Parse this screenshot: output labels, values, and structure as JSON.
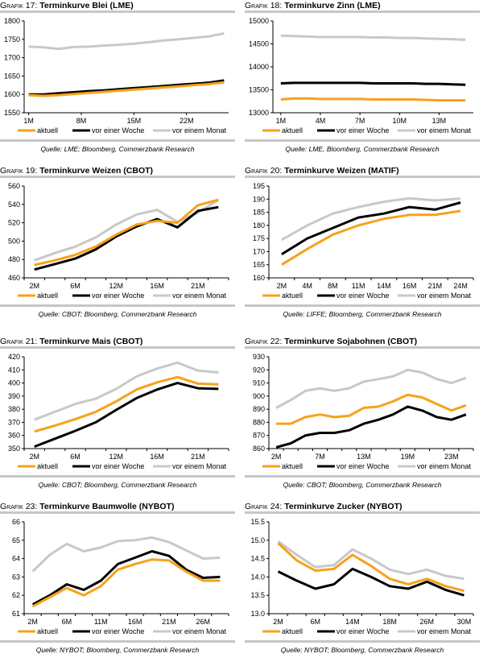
{
  "colors": {
    "aktuell": "#F7A11A",
    "woche": "#000000",
    "monat": "#C8C8C8",
    "rule": "#C6C6C6"
  },
  "chart_data": [
    {
      "type": "line",
      "label": "Grafik 17:",
      "title": "Terminkurve Blei (LME)",
      "source": "Quelle: LME; Bloomberg, Commerzbank Research",
      "xaxis": "numeric",
      "x": [
        1,
        3,
        5,
        7,
        9,
        11,
        13,
        15,
        17,
        19,
        21,
        23,
        25,
        27
      ],
      "xticks": [
        {
          "x": 1,
          "label": "1M"
        },
        {
          "x": 8,
          "label": "8M"
        },
        {
          "x": 15,
          "label": "15M"
        },
        {
          "x": 22,
          "label": "22M"
        }
      ],
      "ylim": [
        1550,
        1800
      ],
      "yticks": [
        "1550",
        "1600",
        "1650",
        "1700",
        "1750",
        "1800"
      ],
      "series": [
        {
          "name": "aktuell",
          "color": "#F7A11A",
          "values": [
            1598,
            1596,
            1598,
            1601,
            1604,
            1607,
            1610,
            1613,
            1616,
            1619,
            1622,
            1625,
            1628,
            1633
          ]
        },
        {
          "name": "vor einer Woche",
          "color": "#000000",
          "values": [
            1600,
            1600,
            1603,
            1606,
            1609,
            1611,
            1614,
            1617,
            1620,
            1623,
            1626,
            1629,
            1632,
            1638
          ]
        },
        {
          "name": "vor einem Monat",
          "color": "#C8C8C8",
          "values": [
            1730,
            1728,
            1724,
            1729,
            1730,
            1733,
            1735,
            1738,
            1742,
            1747,
            1750,
            1754,
            1758,
            1766
          ]
        }
      ]
    },
    {
      "type": "line",
      "label": "Grafik 18:",
      "title": "Terminkurve Zinn (LME)",
      "source": "Quelle: LME, Bloomberg, Commerzbank Research",
      "xaxis": "numeric",
      "x": [
        1,
        2,
        3,
        4,
        5,
        6,
        7,
        8,
        9,
        10,
        11,
        12,
        13,
        14,
        15
      ],
      "xticks": [
        {
          "x": 1,
          "label": "1M"
        },
        {
          "x": 4,
          "label": "4M"
        },
        {
          "x": 7,
          "label": "7M"
        },
        {
          "x": 10,
          "label": "10M"
        },
        {
          "x": 13,
          "label": "13M"
        }
      ],
      "ylim": [
        13000,
        15000
      ],
      "yticks": [
        "13000",
        "13500",
        "14000",
        "14500",
        "15000"
      ],
      "series": [
        {
          "name": "aktuell",
          "color": "#F7A11A",
          "values": [
            13290,
            13310,
            13310,
            13300,
            13300,
            13300,
            13300,
            13290,
            13290,
            13290,
            13290,
            13280,
            13270,
            13270,
            13270
          ]
        },
        {
          "name": "vor einer Woche",
          "color": "#000000",
          "values": [
            13640,
            13650,
            13650,
            13650,
            13650,
            13650,
            13650,
            13640,
            13640,
            13640,
            13640,
            13630,
            13630,
            13620,
            13610
          ]
        },
        {
          "name": "vor einem Monat",
          "color": "#C8C8C8",
          "values": [
            14680,
            14670,
            14660,
            14650,
            14650,
            14650,
            14650,
            14640,
            14640,
            14630,
            14630,
            14620,
            14610,
            14600,
            14590
          ]
        }
      ]
    },
    {
      "type": "line",
      "label": "Grafik 19:",
      "title": "Terminkurve Weizen (CBOT)",
      "source": "Quelle: CBOT; Bloomberg, Commerzbank Research",
      "xaxis": "category",
      "categories": [
        "2M",
        "",
        "6M",
        "",
        "12M",
        "",
        "16M",
        "",
        "21M",
        ""
      ],
      "ylim": [
        460,
        560
      ],
      "yticks": [
        "460",
        "480",
        "500",
        "520",
        "540",
        "560"
      ],
      "series": [
        {
          "name": "aktuell",
          "color": "#F7A11A",
          "values": [
            474,
            479,
            485,
            494,
            507,
            518,
            522,
            520,
            539,
            545
          ]
        },
        {
          "name": "vor einer Woche",
          "color": "#000000",
          "values": [
            469,
            475,
            481,
            491,
            505,
            516,
            524,
            515,
            533,
            537
          ]
        },
        {
          "name": "vor einem Monat",
          "color": "#C8C8C8",
          "values": [
            479,
            487,
            494,
            504,
            518,
            529,
            534,
            521,
            531,
            545
          ]
        }
      ]
    },
    {
      "type": "line",
      "label": "Grafik 20:",
      "title": "Terminkurve Weizen (MATIF)",
      "source": "Quelle: LIFFE; Bloomberg, Commerzbank Research",
      "xaxis": "category",
      "categories": [
        "2M",
        "4M",
        "8M",
        "11M",
        "14M",
        "16M",
        "21M",
        "24M"
      ],
      "ylim": [
        160,
        195
      ],
      "yticks": [
        "160",
        "165",
        "170",
        "175",
        "180",
        "185",
        "190",
        "195"
      ],
      "series": [
        {
          "name": "aktuell",
          "color": "#F7A11A",
          "values": [
            165,
            171,
            176.5,
            180,
            182.5,
            184,
            184,
            185.5
          ]
        },
        {
          "name": "vor einer Woche",
          "color": "#000000",
          "values": [
            169,
            175,
            179,
            183,
            184.5,
            187,
            186,
            188.7
          ]
        },
        {
          "name": "vor einem Monat",
          "color": "#C8C8C8",
          "values": [
            174.5,
            180,
            184.5,
            187,
            189,
            190.3,
            189.5,
            190.2
          ]
        }
      ]
    },
    {
      "type": "line",
      "label": "Grafik 21:",
      "title": "Terminkurve Mais (CBOT)",
      "source": "Quelle: CBOT; Bloomberg, Commerzbank Research",
      "xaxis": "category",
      "categories": [
        "2M",
        "",
        "6M",
        "",
        "12M",
        "",
        "16M",
        "",
        "21M",
        ""
      ],
      "ylim": [
        350,
        420
      ],
      "yticks": [
        "350",
        "360",
        "370",
        "380",
        "390",
        "400",
        "410",
        "420"
      ],
      "series": [
        {
          "name": "aktuell",
          "color": "#F7A11A",
          "values": [
            363,
            367.5,
            372.5,
            378,
            386,
            395,
            400.5,
            404.5,
            399.5,
            399
          ]
        },
        {
          "name": "vor einer Woche",
          "color": "#000000",
          "values": [
            351.5,
            357.5,
            363.5,
            370,
            379.5,
            388.5,
            395,
            400,
            396,
            395.5
          ]
        },
        {
          "name": "vor einem Monat",
          "color": "#C8C8C8",
          "values": [
            372,
            378,
            384,
            388,
            395.5,
            405,
            411,
            415.5,
            409.5,
            408
          ]
        }
      ]
    },
    {
      "type": "line",
      "label": "Grafik 22:",
      "title": "Terminkurve Sojabohnen (CBOT)",
      "source": "Quelle: CBOT; Bloomberg, Commerzbank Research",
      "xaxis": "category",
      "categories": [
        "2M",
        "",
        "",
        "7M",
        "",
        "",
        "13M",
        "",
        "",
        "19M",
        "",
        "",
        "23M",
        ""
      ],
      "ylim": [
        860,
        930
      ],
      "yticks": [
        "860",
        "870",
        "880",
        "890",
        "900",
        "910",
        "920",
        "930"
      ],
      "series": [
        {
          "name": "aktuell",
          "color": "#F7A11A",
          "values": [
            879,
            879,
            884,
            886,
            884,
            885,
            891,
            892,
            896,
            901,
            899,
            894,
            889,
            893
          ]
        },
        {
          "name": "vor einer Woche",
          "color": "#000000",
          "values": [
            861,
            864,
            870,
            872,
            872,
            874,
            879,
            882,
            886,
            892,
            889,
            884,
            882,
            886
          ]
        },
        {
          "name": "vor einem Monat",
          "color": "#C8C8C8",
          "values": [
            891,
            897,
            904,
            906,
            904,
            906,
            911,
            913,
            915,
            920,
            918,
            913,
            910,
            914
          ]
        }
      ]
    },
    {
      "type": "line",
      "label": "Grafik 23:",
      "title": "Terminkurve Baumwolle (NYBOT)",
      "source": "Quelle: NYBOT; Bloomberg, Commerzbank Research",
      "xaxis": "category",
      "categories": [
        "2M",
        "",
        "6M",
        "",
        "11M",
        "",
        "16M",
        "",
        "21M",
        "",
        "26M",
        ""
      ],
      "ylim": [
        61,
        66
      ],
      "yticks": [
        "61",
        "62",
        "63",
        "64",
        "65",
        "66"
      ],
      "series": [
        {
          "name": "aktuell",
          "color": "#F7A11A",
          "values": [
            61.4,
            61.9,
            62.4,
            62.0,
            62.5,
            63.4,
            63.7,
            63.95,
            63.9,
            63.3,
            62.8,
            62.8
          ]
        },
        {
          "name": "vor einer Woche",
          "color": "#000000",
          "values": [
            61.5,
            62.0,
            62.6,
            62.3,
            62.8,
            63.7,
            64.05,
            64.4,
            64.15,
            63.4,
            62.95,
            63.0
          ]
        },
        {
          "name": "vor einem Monat",
          "color": "#C8C8C8",
          "values": [
            63.3,
            64.2,
            64.8,
            64.4,
            64.6,
            64.95,
            65.0,
            65.15,
            64.9,
            64.45,
            64.0,
            64.05
          ]
        }
      ]
    },
    {
      "type": "line",
      "label": "Grafik 24:",
      "title": "Terminkurve Zucker (NYBOT)",
      "source": "Quelle: NYBOT; Bloomberg, Commerzbank Research",
      "xaxis": "category",
      "categories": [
        "2M",
        "",
        "6M",
        "",
        "14M",
        "",
        "18M",
        "",
        "26M",
        "",
        "30M"
      ],
      "ylim": [
        13.0,
        15.5
      ],
      "yticks": [
        "13.0",
        "13.5",
        "14.0",
        "14.5",
        "15.0",
        "15.5"
      ],
      "series": [
        {
          "name": "aktuell",
          "color": "#F7A11A",
          "values": [
            14.92,
            14.45,
            14.17,
            14.22,
            14.6,
            14.3,
            13.95,
            13.8,
            13.95,
            13.75,
            13.62
          ]
        },
        {
          "name": "vor einer Woche",
          "color": "#000000",
          "values": [
            14.15,
            13.9,
            13.68,
            13.8,
            14.22,
            14.0,
            13.75,
            13.68,
            13.87,
            13.65,
            13.5
          ]
        },
        {
          "name": "vor einem Monat",
          "color": "#C8C8C8",
          "values": [
            14.97,
            14.6,
            14.27,
            14.32,
            14.75,
            14.5,
            14.2,
            14.08,
            14.2,
            14.03,
            13.95
          ]
        }
      ]
    }
  ]
}
